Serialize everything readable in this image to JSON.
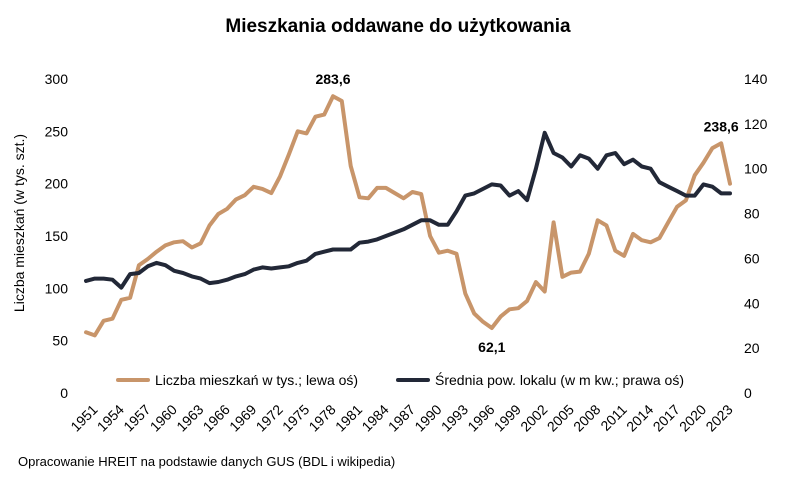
{
  "chart_data": {
    "type": "line",
    "title": "Mieszkania oddawane do użytkowania",
    "ylabel": "Liczba mieszkań (w tys. szt.)",
    "y2label": "",
    "ylim": [
      0,
      300
    ],
    "y2lim": [
      0,
      140
    ],
    "yticks": [
      "0",
      "50",
      "100",
      "150",
      "200",
      "250",
      "300"
    ],
    "y2ticks": [
      "0",
      "20",
      "40",
      "60",
      "80",
      "100",
      "120",
      "140"
    ],
    "xlim": [
      1951,
      2024
    ],
    "xticks": [
      "1951",
      "1954",
      "1957",
      "1960",
      "1963",
      "1966",
      "1969",
      "1972",
      "1975",
      "1978",
      "1981",
      "1984",
      "1987",
      "1990",
      "1993",
      "1996",
      "1999",
      "2002",
      "2005",
      "2008",
      "2011",
      "2014",
      "2017",
      "2020",
      "2023"
    ],
    "legend_position": "bottom",
    "series": [
      {
        "name": "Liczba mieszkań w tys.; lewa oś)",
        "axis": "left",
        "color": "#c8956a",
        "x": [
          1951,
          1952,
          1953,
          1954,
          1955,
          1956,
          1957,
          1958,
          1959,
          1960,
          1961,
          1962,
          1963,
          1964,
          1965,
          1966,
          1967,
          1968,
          1969,
          1970,
          1971,
          1972,
          1973,
          1974,
          1975,
          1976,
          1977,
          1978,
          1979,
          1980,
          1981,
          1982,
          1983,
          1984,
          1985,
          1986,
          1987,
          1988,
          1989,
          1990,
          1991,
          1992,
          1993,
          1994,
          1995,
          1996,
          1997,
          1998,
          1999,
          2000,
          2001,
          2002,
          2003,
          2004,
          2005,
          2006,
          2007,
          2008,
          2009,
          2010,
          2011,
          2012,
          2013,
          2014,
          2015,
          2016,
          2017,
          2018,
          2019,
          2020,
          2021,
          2022,
          2023,
          2024
        ],
        "y": [
          58,
          55,
          69,
          71,
          89,
          91,
          122,
          128,
          135,
          141,
          144,
          145,
          139,
          143,
          160,
          171,
          176,
          185,
          189,
          197,
          195,
          191,
          207,
          228,
          250,
          248,
          264,
          266,
          283.6,
          279,
          217,
          187,
          186,
          196,
          196,
          191,
          186,
          192,
          190,
          150,
          134,
          136,
          133,
          95,
          76,
          68,
          62.1,
          73,
          80,
          81,
          88,
          106,
          97,
          163,
          111,
          115,
          116,
          133,
          165,
          160,
          136,
          131,
          152,
          146,
          144,
          148,
          163,
          178,
          184,
          208,
          220,
          234,
          238.6,
          200
        ]
      },
      {
        "name": "Średnia pow. lokalu (w m kw.; prawa oś)",
        "axis": "right",
        "color": "#222837",
        "x": [
          1951,
          1952,
          1953,
          1954,
          1955,
          1956,
          1957,
          1958,
          1959,
          1960,
          1961,
          1962,
          1963,
          1964,
          1965,
          1966,
          1967,
          1968,
          1969,
          1970,
          1971,
          1972,
          1973,
          1974,
          1975,
          1976,
          1977,
          1978,
          1979,
          1980,
          1981,
          1982,
          1983,
          1984,
          1985,
          1986,
          1987,
          1988,
          1989,
          1990,
          1991,
          1992,
          1993,
          1994,
          1995,
          1996,
          1997,
          1998,
          1999,
          2000,
          2001,
          2002,
          2003,
          2004,
          2005,
          2006,
          2007,
          2008,
          2009,
          2010,
          2011,
          2012,
          2013,
          2014,
          2015,
          2016,
          2017,
          2018,
          2019,
          2020,
          2021,
          2022,
          2023,
          2024
        ],
        "y": [
          50,
          51,
          51,
          50.5,
          47,
          53,
          53.5,
          56.5,
          58,
          57,
          54.5,
          53.5,
          52,
          51,
          49,
          49.5,
          50.5,
          52,
          53,
          55,
          56,
          55.5,
          56,
          56.5,
          58,
          59,
          62,
          63,
          64,
          64,
          64,
          67,
          67.5,
          68.5,
          70,
          71.5,
          73,
          75,
          77,
          77,
          75,
          75,
          81,
          88,
          89,
          91,
          93,
          92.5,
          88,
          90,
          86,
          100,
          116,
          107,
          105,
          101,
          106,
          104.5,
          100,
          106,
          107,
          102,
          104,
          101,
          100,
          94,
          92,
          90,
          88,
          88,
          93,
          92,
          89,
          89
        ]
      }
    ],
    "annotations": [
      {
        "x": 1979,
        "y": 283.6,
        "text": "283,6",
        "position": "above"
      },
      {
        "x": 1997,
        "y": 62.1,
        "text": "62,1",
        "position": "below"
      },
      {
        "x": 2023,
        "y": 238.6,
        "text": "238,6",
        "position": "above"
      }
    ]
  },
  "source_note": "Opracowanie HREIT na podstawie danych GUS (BDL i wikipedia)"
}
